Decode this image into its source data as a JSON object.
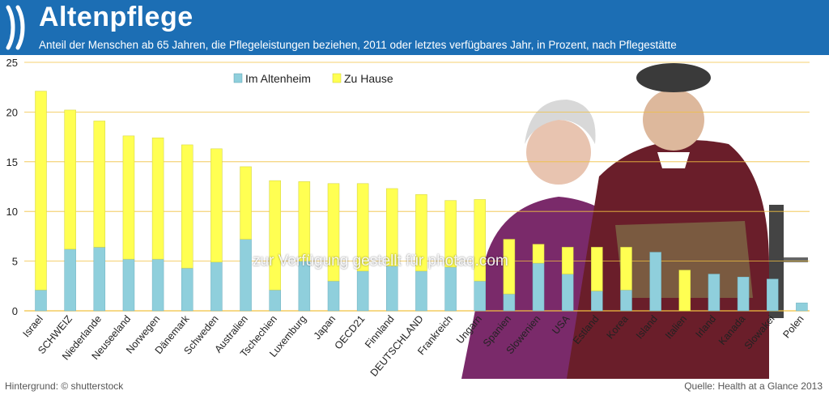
{
  "header": {
    "title": "Altenpflege",
    "subtitle": "Anteil der Menschen ab 65 Jahren, die Pflegeleistungen beziehen, 2011 oder letztes verfügbares Jahr, in Prozent, nach Pflegestätte",
    "logo_icon": "oecd-logo-icon"
  },
  "footer": {
    "background_credit": "Hintergrund: © shutterstock",
    "source": "Quelle: Health at a Glance 2013"
  },
  "watermark": "zur Verfügung gestellt für photaq.com",
  "colors": {
    "header": "#1c6eb4",
    "heim": "#8fcfdc",
    "hause": "#ffff52",
    "grid": "#f0c040"
  },
  "chart_data": {
    "type": "bar",
    "stacked": true,
    "title": "Altenpflege",
    "ylim": [
      0,
      25
    ],
    "yticks": [
      0,
      5,
      10,
      15,
      20,
      25
    ],
    "grid": true,
    "legend_position": "top-left",
    "categories": [
      "Israel",
      "SCHWEIZ",
      "Niederlande",
      "Neuseeland",
      "Norwegen",
      "Dänemark",
      "Schweden",
      "Australien",
      "Tschechien",
      "Luxemburg",
      "Japan",
      "OECD21",
      "Finnland",
      "DEUTSCHLAND",
      "Frankreich",
      "Ungarn",
      "Spanien",
      "Slowenien",
      "USA",
      "Estland",
      "Korea",
      "Island",
      "Italien",
      "Irland",
      "Kanada",
      "Slowakei",
      "Polen"
    ],
    "series": [
      {
        "name": "Im Altenheim",
        "color": "#8fcfdc",
        "values": [
          2.1,
          6.2,
          6.4,
          5.2,
          5.2,
          4.3,
          4.9,
          7.2,
          2.1,
          5.0,
          3.0,
          4.0,
          4.5,
          4.0,
          4.4,
          3.0,
          1.7,
          4.8,
          3.7,
          2.0,
          2.1,
          5.9,
          0.0,
          3.7,
          3.4,
          3.2,
          0.8
        ]
      },
      {
        "name": "Zu Hause",
        "color": "#ffff52",
        "values": [
          20.0,
          14.0,
          12.7,
          12.4,
          12.2,
          12.4,
          11.4,
          7.3,
          11.0,
          8.0,
          9.8,
          8.8,
          7.8,
          7.7,
          6.7,
          8.2,
          5.5,
          1.9,
          2.7,
          4.4,
          4.3,
          0.0,
          4.1,
          0.0,
          0.0,
          0.0,
          0.0
        ]
      }
    ]
  }
}
